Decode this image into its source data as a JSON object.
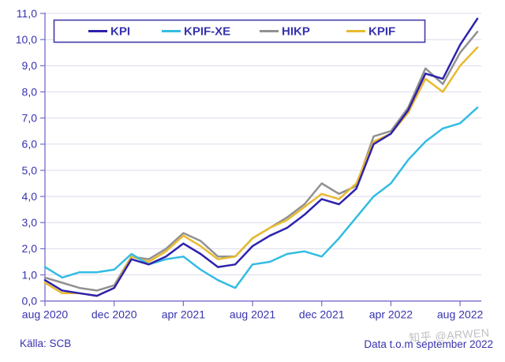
{
  "chart_data": {
    "type": "line",
    "title": "",
    "x_labels": [
      "aug 2020",
      "sep 2020",
      "okt 2020",
      "nov 2020",
      "dec 2020",
      "jan 2021",
      "feb 2021",
      "mar 2021",
      "apr 2021",
      "maj 2021",
      "jun 2021",
      "jul 2021",
      "aug 2021",
      "sep 2021",
      "okt 2021",
      "nov 2021",
      "dec 2021",
      "jan 2022",
      "feb 2022",
      "mar 2022",
      "apr 2022",
      "maj 2022",
      "jun 2022",
      "jul 2022",
      "aug 2022",
      "sep 2022"
    ],
    "x_tick_indices": [
      0,
      4,
      8,
      12,
      16,
      20,
      24
    ],
    "x_tick_labels": [
      "aug 2020",
      "dec 2020",
      "apr 2021",
      "aug 2021",
      "dec 2021",
      "apr 2022",
      "aug 2022"
    ],
    "ylim": [
      0,
      11
    ],
    "y_tick_step": 1,
    "y_tick_labels": [
      "0,0",
      "1,0",
      "2,0",
      "3,0",
      "4,0",
      "5,0",
      "6,0",
      "7,0",
      "8,0",
      "9,0",
      "10,0",
      "11,0"
    ],
    "decimal_style": "comma",
    "grid": true,
    "legend": {
      "position": "top-inside",
      "labels": [
        "KPI",
        "KPIF-XE",
        "HIKP",
        "KPIF"
      ]
    },
    "series": [
      {
        "name": "KPI",
        "color": "#2e22ad",
        "values": [
          0.8,
          0.4,
          0.3,
          0.2,
          0.5,
          1.6,
          1.4,
          1.7,
          2.2,
          1.8,
          1.3,
          1.4,
          2.1,
          2.5,
          2.8,
          3.3,
          3.9,
          3.7,
          4.3,
          6.0,
          6.4,
          7.3,
          8.7,
          8.5,
          9.8,
          10.8
        ]
      },
      {
        "name": "KPIF-XE",
        "color": "#33bce2",
        "values": [
          1.3,
          0.9,
          1.1,
          1.1,
          1.2,
          1.8,
          1.4,
          1.6,
          1.7,
          1.2,
          0.8,
          0.5,
          1.4,
          1.5,
          1.8,
          1.9,
          1.7,
          2.4,
          3.2,
          4.0,
          4.5,
          5.4,
          6.1,
          6.6,
          6.8,
          7.4
        ]
      },
      {
        "name": "HIKP",
        "color": "#919191",
        "values": [
          0.9,
          0.7,
          0.5,
          0.4,
          0.6,
          1.7,
          1.6,
          2.0,
          2.6,
          2.3,
          1.7,
          1.7,
          2.4,
          2.8,
          3.2,
          3.7,
          4.5,
          4.1,
          4.4,
          6.3,
          6.5,
          7.4,
          8.9,
          8.3,
          9.5,
          10.3
        ]
      },
      {
        "name": "KPIF",
        "color": "#e9ba2f",
        "values": [
          0.7,
          0.3,
          0.3,
          0.2,
          0.5,
          1.7,
          1.5,
          1.9,
          2.5,
          2.1,
          1.6,
          1.7,
          2.4,
          2.8,
          3.1,
          3.6,
          4.1,
          3.9,
          4.5,
          6.1,
          6.4,
          7.2,
          8.5,
          8.0,
          9.0,
          9.7
        ]
      }
    ],
    "draw_order": [
      "HIKP",
      "KPIF",
      "KPIF-XE",
      "KPI"
    ]
  },
  "footer": {
    "source": "Källa: SCB",
    "note": "Data t.o.m september 2022"
  },
  "watermark": "知乎 @ARWEN",
  "style": {
    "background": "#ffffff",
    "text_color": "#3733ae",
    "axis_color": "#756bc9",
    "grid_color": "#dcdbec",
    "legend_border": "#4038a8"
  }
}
